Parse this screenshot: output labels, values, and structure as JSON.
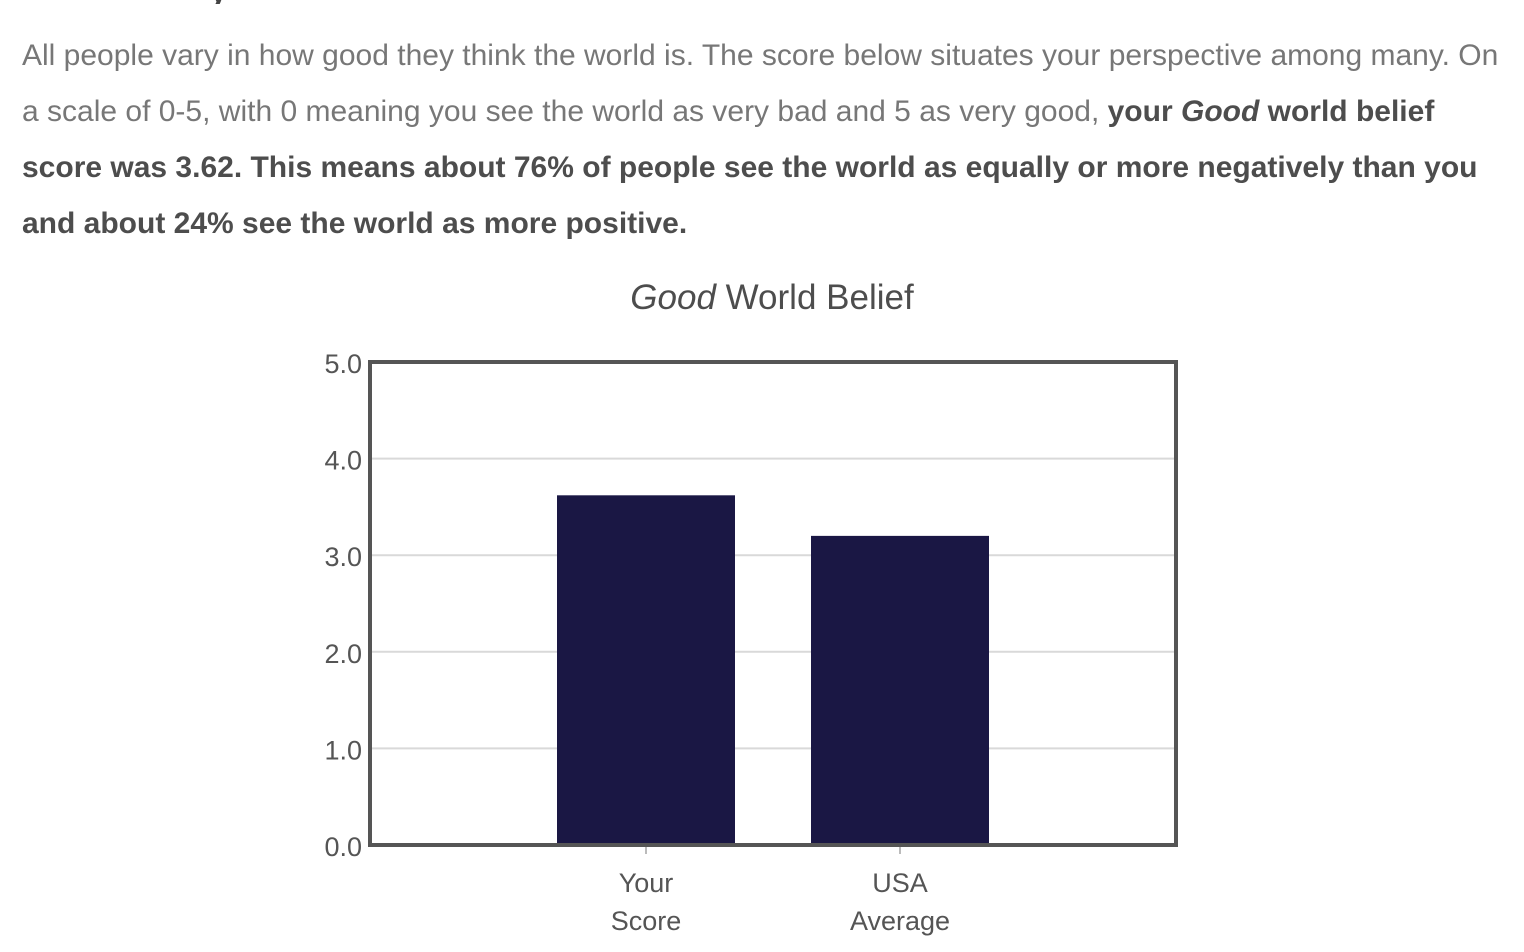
{
  "heading_fragment": "y",
  "intro": {
    "part1": "All people vary in how good they think the world is. The score below situates your perspective among many. On a scale of 0-5, with 0 meaning you see the world as very bad and 5 as very good, ",
    "bold_pre": "your ",
    "bold_italic": "Good",
    "bold_post": " world belief score was 3.62. This means about 76% of people see the world as equally or more negatively than you and about 24% see the world as more positive."
  },
  "chart_data": {
    "type": "bar",
    "title_italic": "Good",
    "title_rest": " World Belief",
    "categories": [
      [
        "Your",
        "Score"
      ],
      [
        "USA",
        "Average"
      ]
    ],
    "values": [
      3.62,
      3.2
    ],
    "yticks": [
      "0.0",
      "1.0",
      "2.0",
      "3.0",
      "4.0",
      "5.0"
    ],
    "ylim": [
      0,
      5
    ],
    "grid": true,
    "bar_color": "#1a1744",
    "grid_color": "#d9d9d9",
    "frame_color": "#555555"
  }
}
